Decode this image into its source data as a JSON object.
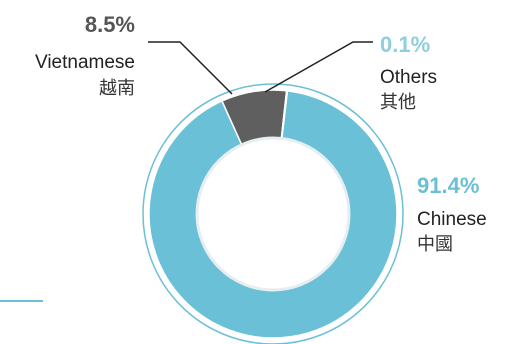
{
  "chart_data": {
    "type": "pie",
    "variant": "donut",
    "slices": [
      {
        "key": "chinese",
        "label_en": "Chinese",
        "label_zh": "中國",
        "value": 91.4,
        "value_label": "91.4%",
        "color": "#6ac0d6",
        "label_color": "#6ac0d6"
      },
      {
        "key": "vietnamese",
        "label_en": "Vietnamese",
        "label_zh": "越南",
        "value": 8.5,
        "value_label": "8.5%",
        "color": "#5f5f5f",
        "label_color": "#555555"
      },
      {
        "key": "others",
        "label_en": "Others",
        "label_zh": "其他",
        "value": 0.1,
        "value_label": "0.1%",
        "color": "#9cd3e2",
        "label_color": "#8ecfdf"
      }
    ],
    "ring_outline_color": "#6ac0d6",
    "left_accent_color": "#6ac0d6"
  }
}
